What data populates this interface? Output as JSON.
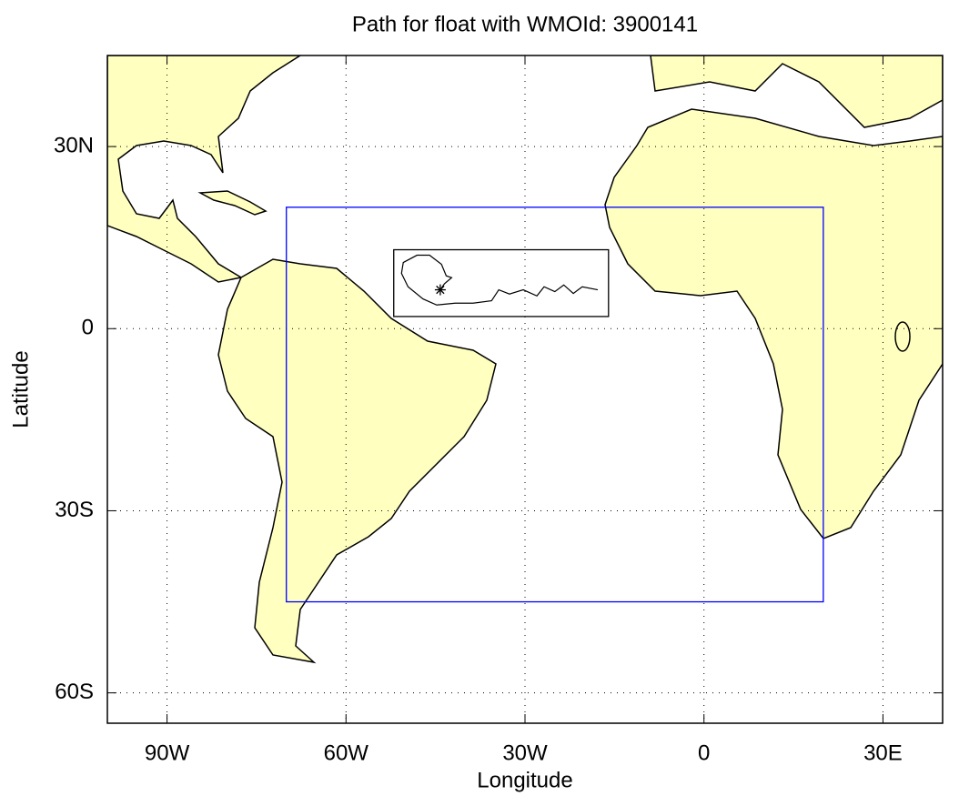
{
  "chart_data": {
    "type": "map",
    "title": "Path for float with WMOId: 3900141",
    "x_label": "Longitude",
    "y_label": "Latitude",
    "xlim": [
      -100,
      40
    ],
    "ylim": [
      -65,
      45
    ],
    "xticks": [
      {
        "value": -90,
        "label": "90W"
      },
      {
        "value": -60,
        "label": "60W"
      },
      {
        "value": -30,
        "label": "30W"
      },
      0,
      {
        "value": 30,
        "label": "30E"
      }
    ],
    "yticks": [
      {
        "value": 30,
        "label": "30N"
      },
      0,
      {
        "value": -30,
        "label": "30S"
      },
      {
        "value": -60,
        "label": "60S"
      }
    ],
    "grid": true,
    "land_color": "#ffffc0",
    "regions": [
      {
        "color": "#0000ff",
        "lon": [
          -70,
          20
        ],
        "lat": [
          -45,
          20
        ]
      },
      {
        "color": "#000000",
        "lon": [
          -52,
          -16
        ],
        "lat": [
          2,
          13
        ]
      }
    ],
    "track": {
      "color": "#000000",
      "lon": [
        -17.8,
        -20.4,
        -21.9,
        -23.5,
        -25.0,
        -26.8,
        -28.0,
        -30.3,
        -32.6,
        -34.4,
        -35.6,
        -38.7,
        -41.7,
        -44.8,
        -47.1,
        -49.6,
        -50.7,
        -50.4,
        -48.1,
        -46.0,
        -44.0,
        -43.2,
        -42.3,
        -43.5,
        -44.2
      ],
      "lat": [
        6.4,
        6.9,
        5.8,
        7.2,
        6.1,
        6.9,
        5.4,
        6.4,
        5.7,
        6.4,
        4.6,
        4.2,
        4.2,
        3.9,
        4.9,
        6.9,
        9.1,
        10.9,
        12.1,
        12.1,
        10.6,
        8.7,
        8.4,
        7.4,
        6.4
      ]
    },
    "marker": {
      "lon": -44.2,
      "lat": 6.4
    }
  }
}
